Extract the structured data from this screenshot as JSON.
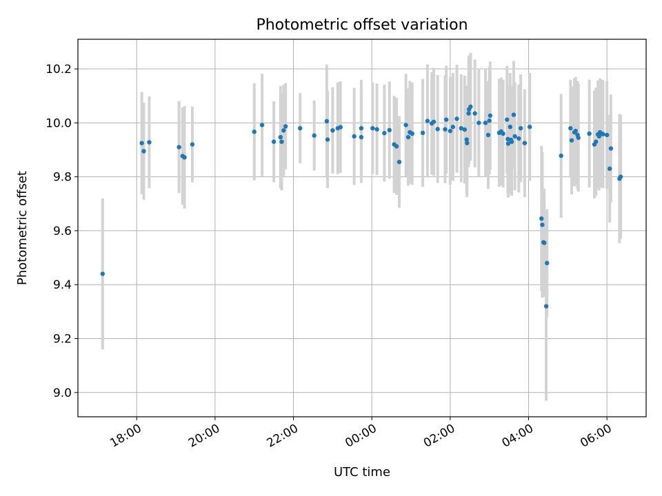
{
  "chart_data": {
    "type": "scatter",
    "title": "Photometric offset variation",
    "xlabel": "UTC time",
    "ylabel": "Photometric offset",
    "x_axis": {
      "unit": "hours since 00:00 UTC",
      "range": [
        -7.5,
        7
      ],
      "ticks": [
        {
          "value": -6,
          "label": "18:00"
        },
        {
          "value": -4,
          "label": "20:00"
        },
        {
          "value": -2,
          "label": "22:00"
        },
        {
          "value": 0,
          "label": "00:00"
        },
        {
          "value": 2,
          "label": "02:00"
        },
        {
          "value": 4,
          "label": "04:00"
        },
        {
          "value": 6,
          "label": "06:00"
        }
      ]
    },
    "y_axis": {
      "range": [
        8.91,
        10.31
      ],
      "ticks": [
        {
          "value": 9.0,
          "label": "9.0"
        },
        {
          "value": 9.2,
          "label": "9.2"
        },
        {
          "value": 9.4,
          "label": "9.4"
        },
        {
          "value": 9.6,
          "label": "9.6"
        },
        {
          "value": 9.8,
          "label": "9.8"
        },
        {
          "value": 10.0,
          "label": "10.0"
        },
        {
          "value": 10.2,
          "label": "10.2"
        }
      ]
    },
    "grid": true,
    "colors": {
      "point": "#1f77b4",
      "errorbar": "#d3d3d3",
      "grid": "#b0b0b0"
    },
    "series": [
      {
        "points": [
          [
            -6.87,
            9.44,
            0.28
          ],
          [
            -5.87,
            9.925,
            0.19
          ],
          [
            -5.82,
            9.895,
            0.18
          ],
          [
            -5.68,
            9.928,
            0.17
          ],
          [
            -4.92,
            9.91,
            0.17
          ],
          [
            -4.83,
            9.877,
            0.18
          ],
          [
            -4.78,
            9.872,
            0.19
          ],
          [
            -4.58,
            9.92,
            0.14
          ],
          [
            -3.0,
            9.967,
            0.18
          ],
          [
            -2.8,
            9.992,
            0.19
          ],
          [
            -2.5,
            9.93,
            0.15
          ],
          [
            -2.33,
            9.947,
            0.19
          ],
          [
            -2.3,
            9.93,
            0.18
          ],
          [
            -2.25,
            9.972,
            0.17
          ],
          [
            -2.2,
            9.987,
            0.16
          ],
          [
            -1.83,
            9.98,
            0.13
          ],
          [
            -1.47,
            9.953,
            0.13
          ],
          [
            -1.15,
            10.006,
            0.21
          ],
          [
            -1.13,
            9.938,
            0.18
          ],
          [
            -1.0,
            9.972,
            0.16
          ],
          [
            -0.87,
            9.98,
            0.17
          ],
          [
            -0.8,
            9.984,
            0.17
          ],
          [
            -0.45,
            9.95,
            0.18
          ],
          [
            -0.27,
            9.98,
            0.18
          ],
          [
            -0.27,
            9.947,
            0.17
          ],
          [
            0.02,
            9.98,
            0.17
          ],
          [
            0.13,
            9.976,
            0.17
          ],
          [
            0.32,
            9.962,
            0.18
          ],
          [
            0.45,
            9.973,
            0.18
          ],
          [
            0.57,
            9.92,
            0.18
          ],
          [
            0.63,
            9.913,
            0.18
          ],
          [
            0.7,
            9.855,
            0.17
          ],
          [
            0.87,
            9.992,
            0.19
          ],
          [
            0.93,
            9.947,
            0.18
          ],
          [
            0.97,
            9.965,
            0.19
          ],
          [
            1.03,
            9.96,
            0.19
          ],
          [
            1.3,
            9.963,
            0.2
          ],
          [
            1.42,
            10.007,
            0.21
          ],
          [
            1.53,
            9.998,
            0.19
          ],
          [
            1.58,
            10.004,
            0.2
          ],
          [
            1.68,
            9.977,
            0.2
          ],
          [
            1.87,
            9.976,
            0.2
          ],
          [
            1.9,
            10.012,
            0.2
          ],
          [
            2.0,
            9.97,
            0.2
          ],
          [
            2.07,
            9.985,
            0.2
          ],
          [
            2.17,
            10.015,
            0.2
          ],
          [
            2.28,
            9.98,
            0.2
          ],
          [
            2.37,
            9.975,
            0.2
          ],
          [
            2.42,
            9.938,
            0.2
          ],
          [
            2.43,
            9.925,
            0.2
          ],
          [
            2.47,
            10.035,
            0.2
          ],
          [
            2.48,
            10.05,
            0.2
          ],
          [
            2.52,
            10.06,
            0.2
          ],
          [
            2.63,
            10.035,
            0.2
          ],
          [
            2.73,
            10.0,
            0.2
          ],
          [
            2.9,
            10.0,
            0.2
          ],
          [
            2.97,
            9.955,
            0.2
          ],
          [
            3.0,
            10.008,
            0.2
          ],
          [
            3.02,
            10.027,
            0.2
          ],
          [
            3.25,
            9.963,
            0.2
          ],
          [
            3.3,
            9.968,
            0.2
          ],
          [
            3.35,
            9.96,
            0.2
          ],
          [
            3.45,
            10.012,
            0.2
          ],
          [
            3.47,
            9.94,
            0.2
          ],
          [
            3.48,
            9.923,
            0.2
          ],
          [
            3.53,
            9.985,
            0.2
          ],
          [
            3.55,
            9.937,
            0.2
          ],
          [
            3.57,
            9.93,
            0.2
          ],
          [
            3.62,
            10.03,
            0.2
          ],
          [
            3.65,
            9.95,
            0.2
          ],
          [
            3.75,
            9.942,
            0.2
          ],
          [
            3.8,
            9.98,
            0.2
          ],
          [
            3.9,
            9.925,
            0.2
          ],
          [
            4.03,
            9.985,
            0.2
          ],
          [
            4.33,
            9.645,
            0.27
          ],
          [
            4.35,
            9.622,
            0.27
          ],
          [
            4.38,
            9.557,
            0.2
          ],
          [
            4.4,
            9.555,
            0.2
          ],
          [
            4.45,
            9.32,
            0.35
          ],
          [
            4.47,
            9.48,
            0.2
          ],
          [
            4.83,
            9.878,
            0.23
          ],
          [
            5.07,
            9.98,
            0.18
          ],
          [
            5.1,
            9.935,
            0.2
          ],
          [
            5.17,
            9.965,
            0.2
          ],
          [
            5.2,
            9.97,
            0.2
          ],
          [
            5.25,
            9.955,
            0.2
          ],
          [
            5.27,
            9.945,
            0.2
          ],
          [
            5.55,
            9.96,
            0.2
          ],
          [
            5.68,
            9.92,
            0.2
          ],
          [
            5.72,
            9.93,
            0.2
          ],
          [
            5.77,
            9.957,
            0.2
          ],
          [
            5.8,
            9.95,
            0.2
          ],
          [
            5.82,
            9.965,
            0.2
          ],
          [
            5.87,
            9.96,
            0.2
          ],
          [
            5.9,
            9.958,
            0.2
          ],
          [
            6.0,
            9.955,
            0.2
          ],
          [
            6.07,
            9.83,
            0.2
          ],
          [
            6.1,
            9.905,
            0.2
          ],
          [
            6.32,
            9.793,
            0.24
          ],
          [
            6.35,
            9.8,
            0.23
          ]
        ]
      }
    ]
  }
}
